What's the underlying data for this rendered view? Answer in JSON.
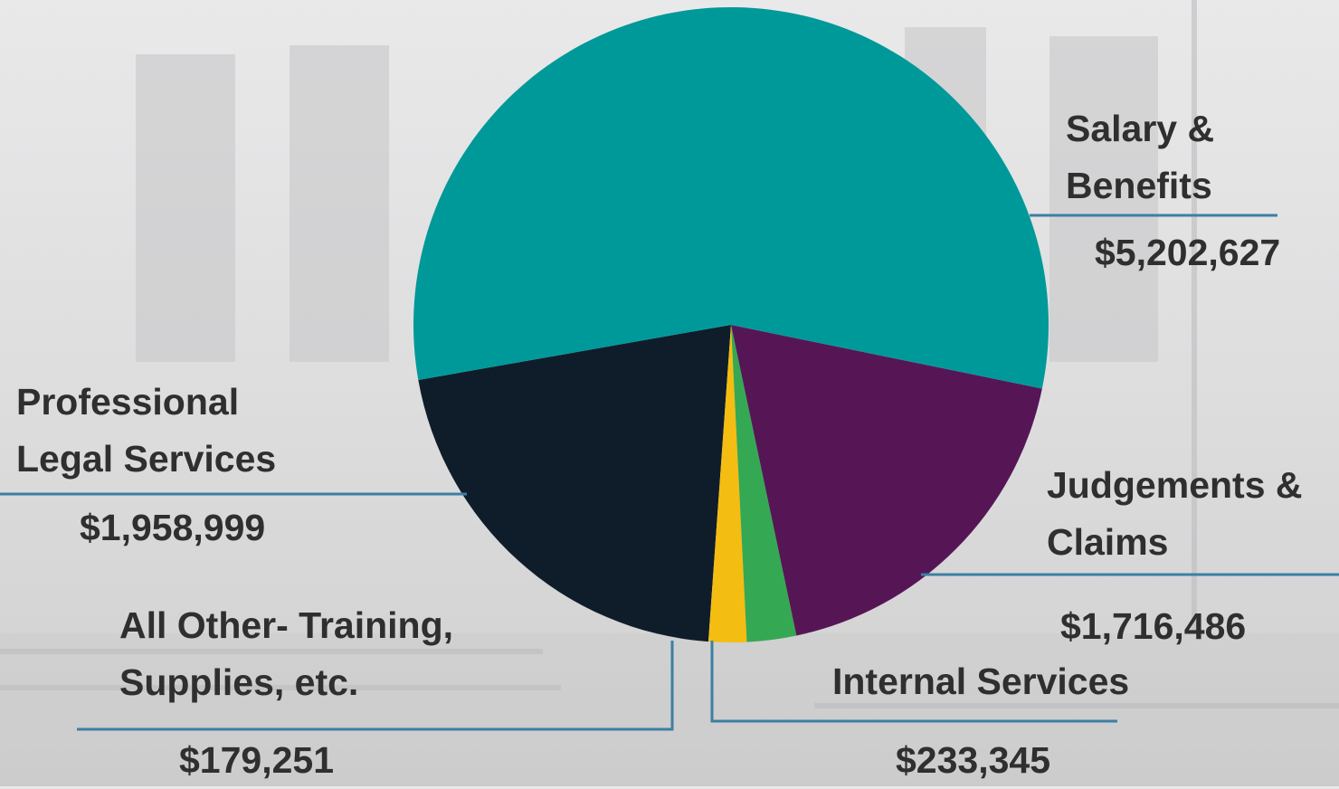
{
  "chart_data": {
    "type": "pie",
    "categories": [
      "Salary & Benefits",
      "Judgements & Claims",
      "Internal Services",
      "All Other- Training, Supplies, etc.",
      "Professional Legal Services"
    ],
    "values": [
      5202627,
      1716486,
      233345,
      179251,
      1958999
    ],
    "value_labels": [
      "$5,202,627",
      "$1,716,486",
      "$233,345",
      "$179,251",
      "$1,958,999"
    ],
    "colors": [
      "#009999",
      "#561656",
      "#35a853",
      "#f4bd12",
      "#0f1d2a"
    ]
  }
}
